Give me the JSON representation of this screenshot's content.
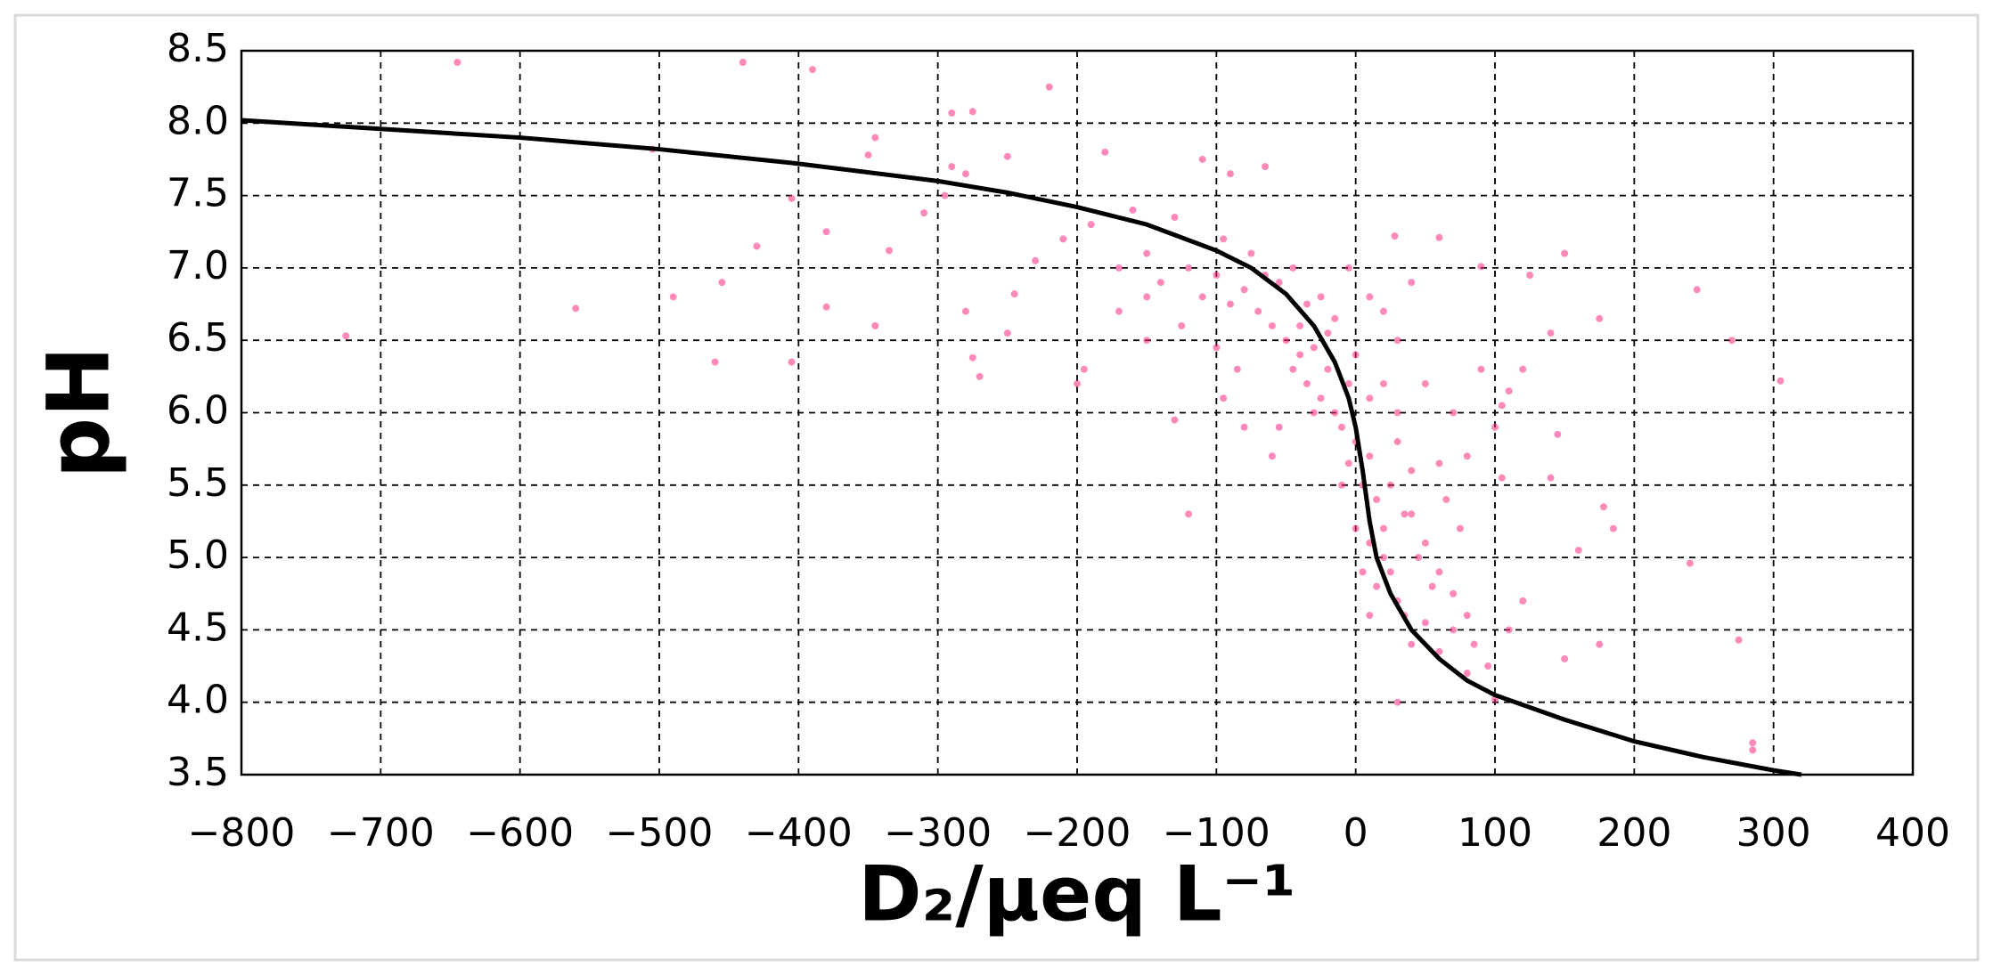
{
  "chart_data": {
    "type": "scatter",
    "x_label": "D₂/μeq L⁻¹",
    "y_label": "pH",
    "xlim": [
      -800,
      400
    ],
    "xticks": [
      {
        "value": -800,
        "label": "−800"
      },
      {
        "value": -700,
        "label": "−700"
      },
      {
        "value": -600,
        "label": "−600"
      },
      {
        "value": -500,
        "label": "−500"
      },
      {
        "value": -400,
        "label": "−400"
      },
      {
        "value": -300,
        "label": "−300"
      },
      {
        "value": -200,
        "label": "−200"
      },
      {
        "value": -100,
        "label": "−100"
      },
      0,
      100,
      200,
      300,
      400
    ],
    "ylim": [
      3.5,
      8.5
    ],
    "yticks": [
      3.5,
      {
        "value": 4,
        "label": "4.0"
      },
      4.5,
      {
        "value": 5,
        "label": "5.0"
      },
      5.5,
      {
        "value": 6,
        "label": "6.0"
      },
      6.5,
      {
        "value": 7,
        "label": "7.0"
      },
      7.5,
      {
        "value": 8,
        "label": "8.0"
      },
      8.5
    ],
    "grid": true,
    "series": [
      {
        "color": "#ff2a7f",
        "kind": "scatter",
        "x": [
          -645,
          -440,
          -390,
          -220,
          -290,
          -275,
          -345,
          -350,
          -505,
          -405,
          -430,
          -380,
          -335,
          -310,
          -295,
          -290,
          -280,
          -250,
          -180,
          -110,
          -65,
          -90,
          -725,
          -560,
          -490,
          -460,
          -455,
          -405,
          -380,
          -345,
          -280,
          -275,
          -270,
          -250,
          -245,
          -230,
          -200,
          -195,
          -170,
          -150,
          -130,
          -120,
          -95,
          -80,
          -60,
          -55,
          28,
          60,
          90,
          125,
          150,
          175,
          140,
          120,
          105,
          145,
          140,
          105,
          178,
          185,
          160,
          120,
          110,
          150,
          175,
          245,
          270,
          305,
          240,
          275,
          285,
          285,
          30,
          100,
          80,
          70,
          55,
          45,
          35,
          40,
          60,
          80,
          90,
          70,
          50,
          30,
          20,
          40,
          10,
          -5,
          -150,
          -140,
          -120,
          -110,
          -100,
          -90,
          -80,
          -70,
          -60,
          -50,
          -45,
          -40,
          -35,
          -30,
          -25,
          -20,
          -15,
          -10,
          -5,
          0,
          5,
          10,
          15,
          0,
          10,
          20,
          25,
          15,
          30,
          35,
          40,
          50,
          60,
          20,
          25,
          30,
          -30,
          -40,
          -55,
          -75,
          -95,
          -130,
          -160,
          -190,
          -210,
          -170,
          -150,
          -125,
          -100,
          -85,
          -20,
          0,
          10,
          20,
          30,
          40,
          50,
          60,
          70,
          80,
          5,
          10,
          -10,
          -5,
          65,
          75,
          85,
          95,
          110,
          100,
          -45,
          -65,
          -35,
          -15,
          -25
        ],
        "y": [
          8.42,
          8.42,
          8.37,
          8.25,
          8.07,
          8.08,
          7.9,
          7.78,
          7.82,
          7.48,
          7.15,
          7.25,
          7.12,
          7.38,
          7.5,
          7.7,
          7.65,
          7.77,
          7.8,
          7.75,
          7.7,
          7.65,
          6.53,
          6.72,
          6.8,
          6.35,
          6.9,
          6.35,
          6.73,
          6.6,
          6.7,
          6.38,
          6.25,
          6.55,
          6.82,
          7.05,
          6.2,
          6.3,
          6.7,
          6.5,
          5.95,
          5.3,
          6.1,
          5.9,
          5.7,
          5.9,
          7.22,
          7.21,
          7.01,
          6.95,
          7.1,
          6.65,
          6.55,
          6.3,
          6.05,
          5.85,
          5.55,
          5.55,
          5.35,
          5.2,
          5.05,
          4.7,
          4.5,
          4.3,
          4.4,
          6.85,
          6.5,
          6.22,
          4.96,
          4.43,
          3.72,
          3.67,
          4.0,
          4.02,
          4.2,
          4.5,
          4.8,
          5.0,
          5.3,
          5.6,
          5.65,
          5.7,
          6.3,
          6.0,
          6.2,
          6.5,
          6.7,
          6.9,
          6.8,
          7.0,
          7.1,
          6.9,
          7.0,
          6.8,
          6.95,
          6.75,
          6.85,
          6.7,
          6.6,
          6.5,
          6.3,
          6.4,
          6.2,
          6.45,
          6.1,
          6.3,
          6.0,
          5.9,
          6.2,
          5.8,
          5.5,
          5.7,
          5.4,
          5.2,
          5.1,
          5.0,
          4.9,
          4.8,
          4.7,
          4.6,
          4.4,
          4.55,
          4.35,
          5.2,
          5.5,
          5.8,
          6.0,
          6.6,
          6.9,
          7.1,
          7.2,
          7.35,
          7.4,
          7.3,
          7.2,
          7.0,
          6.8,
          6.6,
          6.45,
          6.3,
          6.55,
          6.4,
          6.1,
          6.2,
          6.0,
          5.3,
          5.1,
          4.9,
          4.75,
          4.6,
          4.9,
          4.6,
          5.5,
          5.65,
          5.4,
          5.2,
          4.4,
          4.25,
          6.15,
          5.9,
          7.0,
          6.95,
          6.75,
          6.65,
          6.8
        ]
      },
      {
        "color": "#000000",
        "kind": "line",
        "x": [
          -800,
          -700,
          -600,
          -500,
          -400,
          -300,
          -250,
          -200,
          -150,
          -100,
          -75,
          -50,
          -30,
          -15,
          -5,
          0,
          5,
          10,
          15,
          25,
          40,
          60,
          80,
          100,
          150,
          200,
          250,
          300,
          320
        ],
        "y": [
          8.02,
          7.96,
          7.9,
          7.82,
          7.72,
          7.6,
          7.52,
          7.42,
          7.3,
          7.12,
          7.0,
          6.82,
          6.6,
          6.35,
          6.1,
          5.9,
          5.6,
          5.25,
          5.0,
          4.75,
          4.5,
          4.3,
          4.15,
          4.05,
          3.88,
          3.73,
          3.62,
          3.53,
          3.5
        ]
      }
    ]
  }
}
